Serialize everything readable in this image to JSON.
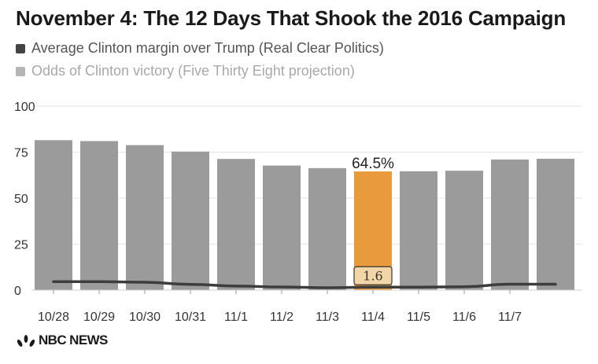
{
  "title": "November 4: The 12 Days That Shook the 2016 Campaign",
  "legend": {
    "margin_label": "Average Clinton margin over Trump (Real Clear Politics)",
    "odds_label": "Odds of Clinton victory (Five Thirty Eight projection)"
  },
  "colors": {
    "bar": "#9b9b9b",
    "highlight": "#e89a3c",
    "line": "#3d3d3d",
    "margin_swatch": "#444444",
    "odds_swatch": "#b5b5b5"
  },
  "brand": {
    "name": "NBC NEWS",
    "logo_icon": "nbc-peacock-icon"
  },
  "chart_data": {
    "type": "bar",
    "categories": [
      "10/28",
      "10/29",
      "10/30",
      "10/31",
      "11/1",
      "11/2",
      "11/3",
      "11/4",
      "11/5",
      "11/6",
      "11/7",
      ""
    ],
    "ylim": [
      0,
      100
    ],
    "yticks": [
      "0",
      "25",
      "50",
      "75",
      "100"
    ],
    "grid": true,
    "legend_position": "top-left",
    "series": [
      {
        "name": "Odds of Clinton victory (Five Thirty Eight projection)",
        "type": "bar",
        "values": [
          81.5,
          81,
          78.8,
          75.3,
          71.3,
          67.7,
          66.3,
          64.5,
          64.6,
          64.9,
          71,
          71.4
        ]
      },
      {
        "name": "Average Clinton margin over Trump (Real Clear Politics)",
        "type": "line",
        "values": [
          4.6,
          4.6,
          4.3,
          3.1,
          2.2,
          1.7,
          1.3,
          1.6,
          1.6,
          1.8,
          3.2,
          3.2
        ]
      }
    ],
    "highlight_index": 7,
    "annotations": {
      "bar_label": "64.5%",
      "line_label": "1.6"
    }
  }
}
